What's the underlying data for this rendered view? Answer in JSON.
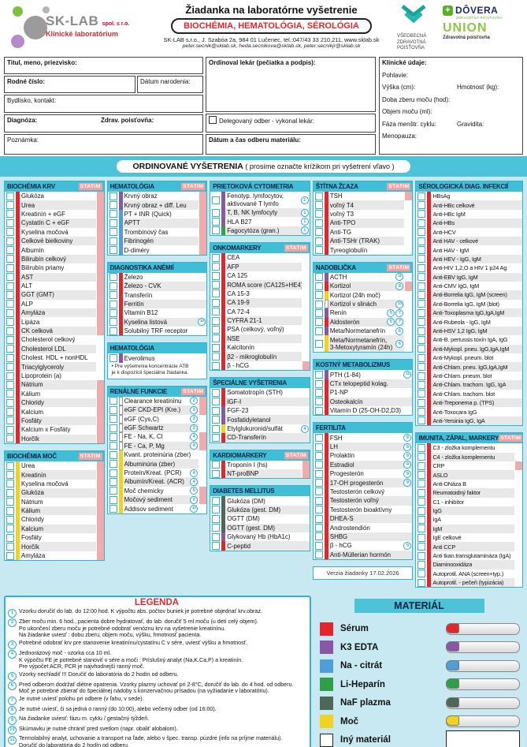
{
  "header": {
    "title": "Žiadanka na laboratórne vyšetrenie",
    "subtitle": "BIOCHÉMIA, HEMATOLÓGIA, SÉROLÓGIA",
    "address": "SK-LAB s.r.o., J. Szabóa 2a, 984 01 Lučenec, tel.:047/43 33 210,211, www.sklab.sk",
    "emails": "peter.secnik@sklab.sk, heda.secnikova@sklab.sk, peter.secnikjr@sklab.sk",
    "logo_name": "SK-LAB",
    "logo_suffix": "spol. s r.o.",
    "logo_sub": "Klinické laboratórium",
    "vszp_lines": "VŠEOBECNÁ\nZDRAVOTNÁ\nPOISŤOVŇA",
    "dovera_name": "DÔVERA",
    "dovera_sub": "ZDRAVOTNÁ POISŤOVŇA",
    "union_name": "UNION",
    "union_sub": "Zdravotná poisťovňa"
  },
  "patient": {
    "name_label": "Titul, meno, priezvisko:",
    "personal_id_label": "Rodné číslo:",
    "birthdate_label": "Dátum narodenia:",
    "address_label": "Bydlisko, kontakt:",
    "diagnosis_label": "Diagnóza:",
    "insurer_label": "Zdrav. poisťovňa:",
    "note_label": "Poznámka:",
    "doctor_label": "Ordinoval lekár (pečiatka a podpis):",
    "delegated_label": "Delegovaný odber - vykonal lekár:",
    "datetime_label": "Dátum a čas odberu materiálu:"
  },
  "clinical": {
    "title": "Klinické údaje:",
    "sex": "Pohlavie:",
    "height": "Výška (cm):",
    "weight": "Hmotnosť (kg):",
    "urine_time": "Doba zberu moču (hod):",
    "urine_volume": "Objem moču (ml):",
    "cycle": "Fáza menštr. cyklu:",
    "gravidity": "Gravidita:",
    "menopause": "Menopauza:"
  },
  "banner": {
    "title": "ORDINOVANÉ VYŠETRENIA",
    "note": "( prosíme označte krížikom pri vyšetrení vľavo )"
  },
  "statim_label": "STATIM",
  "material_colors": {
    "serum": "#e3262c",
    "edta": "#8a57a5",
    "citrat": "#4f9ed9",
    "hep": "#2f9e48",
    "naf": "#4f6757",
    "moc": "#f0d321",
    "none": "#ffffff"
  },
  "columns": [
    {
      "sections": [
        {
          "t": "BIOCHÉMIA KRV",
          "statim": true,
          "m": "serum",
          "sdef": 1,
          "rows": [
            "Glukóza",
            "Urea",
            "Kreatinín + eGF",
            "Cystatín C + eGF",
            "Kyselina močová",
            "Celkové bielkoviny",
            "Albumín",
            "Bilirubín celkový",
            "Bilirubín priamy",
            "AST",
            "ALT",
            "GGT (GMT)",
            "ALP",
            "Amyláza",
            "Lipáza",
            "CK celková",
            {
              "l": "Cholesterol celkový",
              "s": 0
            },
            {
              "l": "Cholesterol LDL",
              "s": 0
            },
            {
              "l": "Cholest. HDL + nonHDL",
              "s": 0
            },
            {
              "l": "Triacylglyceroly",
              "s": 0
            },
            {
              "l": "Lipoprotein (a)",
              "s": 0
            },
            "Nátrium",
            "Kálium",
            "Chloridy",
            "Kalcium",
            "Fosfáty",
            "Kalcium x Fosfáty",
            "Horčík"
          ]
        },
        {
          "t": "BIOCHÉMIA MOČ",
          "statim": true,
          "m": "moc",
          "sdef": 1,
          "rows": [
            "Urea",
            "Kreatinín",
            "Kyselina močová",
            "Glukóza",
            "Nátrium",
            "Kálium",
            "Chloridy",
            "Kalcium",
            "Fosfáty",
            "Horčík",
            "Amyláza"
          ]
        }
      ]
    },
    {
      "sections": [
        {
          "t": "HEMATOLÓGIA",
          "statim": true,
          "m": "citrat",
          "sdef": 1,
          "rows": [
            {
              "l": "Krvný obraz",
              "m": "edta"
            },
            {
              "l": "Krvný obraz + diff. Leu",
              "m": "edta"
            },
            "PT + INR (Quick)",
            "APTT",
            "Trombínový čas",
            "Fibrinogén",
            "D-diméry"
          ]
        },
        {
          "t": "DIAGNOSTIKA ANÉMIÍ",
          "statim": false,
          "m": "serum",
          "sdef": 0,
          "rows": [
            "Železo",
            "Železo - CVK",
            "Transferín",
            "Ferritín",
            "Vitamín B12",
            {
              "l": "Kyselina listová",
              "n": [
                "10"
              ]
            },
            "Solubilný TRF receptor"
          ]
        },
        {
          "t": "HEMATOLÓGIA",
          "statim": false,
          "m": "edta",
          "sdef": 0,
          "rows": [
            "Everolimus"
          ],
          "note": "• Pre vyšetrenia koncentrácie ATB\n  je k dispozícii špeciálna žiadanka."
        },
        {
          "t": "RENÁLNE FUNKCIE",
          "statim": true,
          "m": "none",
          "sdef": 0,
          "rows": [
            {
              "l": "Clearance kreatinínu",
              "n": [
                "2"
              ],
              "s": 1
            },
            {
              "l": "eGF CKD-EPI (Kre.)",
              "n": [
                "3"
              ],
              "s": 1
            },
            {
              "l": "eGF (Cys,C)",
              "n": [
                "3"
              ]
            },
            {
              "l": "eGF Schwartz",
              "n": [
                "3"
              ]
            },
            {
              "l": "FE - Na, K, Cl",
              "n": [
                "4"
              ],
              "s": 1
            },
            {
              "l": "FE - Ca, P, Mg",
              "n": [
                "4"
              ],
              "s": 1
            },
            {
              "l": "Kvant. proteinúria (zber)",
              "m": "moc"
            },
            {
              "l": "Albuminúria (zber)",
              "m": "moc"
            },
            {
              "l": "Proteín/Kreat. (PCR)",
              "m": "moc",
              "n": [
                "4"
              ]
            },
            {
              "l": "Albumín/Kreat. (ACR)",
              "m": "moc",
              "n": [
                "4"
              ]
            },
            {
              "l": "Moč chemicky",
              "m": "moc",
              "n": [
                "5"
              ],
              "s": 1
            },
            {
              "l": "Močový sediment",
              "m": "moc",
              "n": [
                "5"
              ],
              "s": 1
            },
            {
              "l": "Addisov sediment",
              "m": "moc",
              "n": [
                "12"
              ]
            }
          ]
        }
      ]
    },
    {
      "sections": [
        {
          "t": "PRIETOKOVÁ CYTOMETRIA",
          "statim": false,
          "m": "edta",
          "sdef": 0,
          "rows": [
            {
              "l": "Fenotyp. lymfocytov,",
              "l2": "aktivované T lymfo",
              "n": [
                "1"
              ]
            },
            {
              "l": "T, B, NK lymfocyty",
              "n": [
                "1"
              ]
            },
            {
              "l": "HLA B27",
              "n": [
                "1"
              ]
            },
            {
              "l": "Fagocytóza (gran.)",
              "m": "hep",
              "n": [
                "1"
              ]
            }
          ]
        },
        {
          "t": "ONKOMARKERY",
          "statim": true,
          "m": "serum",
          "sdef": 0,
          "rows": [
            "CEA",
            "AFP",
            "CA 125",
            "ROMA score (CA125+HE4)",
            "CA 15-3",
            "CA 19-9",
            "CA 72-4",
            "CYFRA 21-1",
            "PSA (celkový, voľný)",
            "NSE",
            "Kalcitonín",
            "β2 - mikroglobulín",
            {
              "l": "β - hCG",
              "s": 1
            }
          ]
        },
        {
          "t": "ŠPECIÁLNE VYŠETRENIA",
          "statim": false,
          "m": "serum",
          "sdef": 0,
          "rows": [
            "Somatotropín (STH)",
            "IGF-I",
            {
              "l": "FGF-23",
              "m": "edta"
            },
            {
              "l": "Fosfatidyletanol",
              "m": "edta"
            },
            {
              "l": "Etylglukuronid/sulfát",
              "m": "moc",
              "n": [
                "4"
              ]
            },
            "CD-Transferín"
          ]
        },
        {
          "t": "KARDIOMARKERY",
          "statim": true,
          "m": "serum",
          "sdef": 1,
          "rows": [
            "Troponín I (hs)",
            "NT-proBNP"
          ]
        },
        {
          "t": "DIABETES MELLITUS",
          "statim": false,
          "m": "naf",
          "sdef": 0,
          "rows": [
            "Glukóza (DM)",
            "Glukóza (gest. DM)",
            "OGTT (DM)",
            "OGTT (gest. DM)",
            {
              "l": "Glykovaný Hb (HbA1c)",
              "m": "edta"
            },
            {
              "l": "C-peptid",
              "m": "serum"
            }
          ]
        }
      ]
    },
    {
      "version": "Verzia žiadanky 17.02.2026",
      "sections": [
        {
          "t": "ŠTÍTNA ŽĽAZA",
          "statim": true,
          "m": "serum",
          "sdef": 0,
          "rows": [
            {
              "l": "TSH",
              "s": 1
            },
            "voľný T4",
            "voľný T3",
            "Anti-TPO",
            "Anti-TG",
            "Anti-TSHr (TRAK)",
            "Tyreoglobulín"
          ]
        },
        {
          "t": "NADOBLIČKA",
          "statim": true,
          "m": "serum",
          "sdef": 0,
          "rows": [
            {
              "l": "ACTH",
              "m": "edta",
              "n": [
                "11"
              ]
            },
            {
              "l": "Kortizol",
              "n": [
                "8"
              ],
              "s": 1
            },
            {
              "l": "Kortizol (24h moč)",
              "m": "moc"
            },
            {
              "l": "Kortizol v slinách",
              "m": "none",
              "n": [
                "13"
              ]
            },
            {
              "l": "Renín",
              "m": "edta",
              "n": [
                "5",
                "7"
              ]
            },
            {
              "l": "Aldosterón",
              "n": [
                "5",
                "7"
              ]
            },
            {
              "l": "Meta/Normetanefrín",
              "m": "edta",
              "n": [
                "6"
              ]
            },
            {
              "l": "Meta/Normetanefrín,",
              "l2": "3-Metoxytyramín (24h)",
              "m": "moc",
              "n": [
                "6"
              ]
            }
          ]
        },
        {
          "t": "KOSTNÝ METABOLIZMUS",
          "statim": false,
          "m": "serum",
          "sdef": 0,
          "rows": [
            {
              "l": "PTH (1-84)",
              "m": "edta",
              "n": [
                "11"
              ]
            },
            "CTx telopeptid kolag.",
            "P1-NP",
            "Osteokalcín",
            "Vitamín D (25-OH-D2,D3)"
          ]
        },
        {
          "t": "FERTILITA",
          "statim": false,
          "m": "serum",
          "sdef": 0,
          "rows": [
            {
              "l": "FSH",
              "n": [
                "9"
              ]
            },
            {
              "l": "LH",
              "n": [
                "9"
              ]
            },
            {
              "l": "Prolaktín",
              "n": [
                "9"
              ]
            },
            {
              "l": "Estradiol",
              "n": [
                "9"
              ]
            },
            {
              "l": "Progesterón",
              "n": [
                "9"
              ]
            },
            {
              "l": "17-OH progesterón",
              "n": [
                "9"
              ]
            },
            "Testosterón celkový",
            "Testosterón voľný",
            "Testosterón bioaktívny",
            "DHEA-S",
            "Androstendión",
            "SHBG",
            {
              "l": "β - hCG",
              "n": [
                "9"
              ]
            },
            "Anti-Müllerian hormón"
          ]
        }
      ]
    },
    {
      "narrow": true,
      "sections": [
        {
          "t": "SÉROLOGICKÁ DIAG. INFEKCIÍ",
          "statim": false,
          "m": "serum",
          "sdef": 0,
          "rows": [
            "HBsAg",
            "Anti-HBc celkové",
            "Anti-HBc IgM",
            "Anti-HBs",
            "Anti-HCV",
            "Anti HAV - celkové",
            "Anti HAV - IgM",
            "Anti HEV - IgG, IgM",
            "Anti-HIV 1,2,O a HIV 1 p24 Ag",
            "Anti-EBV IgG, IgM",
            "Anti-CMV IgG, IgM",
            "Anti-Borrelia IgG, IgM (screen)",
            "Anti-Borrelia IgG, IgM (blot)",
            "Anti-Toxoplasma IgG,IgA,IgM",
            "Anti-Rubeola - IgG, IgM",
            "Anti-HSV 1,2 IgG, IgM",
            "Anti-B. pertussis toxín IgA, IgG",
            "Anti-Mykopl. pneu. IgG,IgA,IgM",
            "Anti-Mykopl. pneum. blot",
            "Anti-Chlam. pneu. IgG,IgA,IgM",
            "Anti-Chlam. pneum. blot",
            "Anti-Chlam. trachom. IgG, IgA",
            "Anti-Chlam. trachom. blot",
            "Anti-Treponema p. (TPS)",
            "Anti-Toxocara IgG",
            "Anti-Yersinia IgG, IgA"
          ]
        },
        {
          "t": "IMUNITA, ZÁPAL, MARKERY",
          "statim": true,
          "m": "serum",
          "sdef": 0,
          "rows": [
            "C3 - zložka komplementu",
            "C4 - zložka komplementu",
            {
              "l": "CRP",
              "s": 1
            },
            "ASLO",
            "Anti-DNáza B",
            "Reumatoidný faktor",
            "C1 - inhibítor",
            "IgG",
            "IgA",
            "IgM",
            "IgE celkové",
            "Anti CCP",
            "Anti tkan.transglutamináza (IgA)",
            "Diaminooxidáza",
            "Autoprotil. ANA (screen+typ.)",
            "Autoprotil. - pečeň (typizácia)"
          ]
        }
      ]
    }
  ],
  "legend": {
    "title": "LEGENDA",
    "items": [
      {
        "num": "1",
        "text": "Vzorku doručiť do lab. do 12:00 hod. K výpočtu abs. počtov buniek je potrebné objednať krv.obraz."
      },
      {
        "num": "2",
        "text": "Zber moču min. 6 hod., pacienta dobre hydratovať, do lab. doručiť 5 ml moču (u detí celý objem).\nPo ukončení zberu moču je potrebné odobrať venóznu krv na vyšetrenie kreatinínu.\nNa žiadanke uviesť : dobu zberu, objem moču, výšku, hmotnosť pacienta."
      },
      {
        "num": "3",
        "text": "Potrebné odobrať krv pre stanovenie kreatinínu/cystatínu C v sére, uviesť výšku a hmotnosť."
      },
      {
        "num": "4",
        "text": "Jednorázový moč - vzorka cca 10 ml.\nK výpočtu FE je potrebné stanoviť v sére a moči : Príslušný analyt (Na,K,Ca,P) a kreatinín.\nPre výpočet ACR, PCR je najvhodnejší ranný moč."
      },
      {
        "num": "5",
        "text": "Vzorky nechladiť !!! Doručiť do laboratória do 2 hodín od odberu."
      },
      {
        "num": "6",
        "text": "Pred odberom dodržať diétne opatrenia. Vzorky plazmy uchovať pri 2-8°C, doručiť do lab. do 4 hod. od odberu.\nMoč je potrebné zbierať do špeciálnej nádoby s konzervačnou prísadou (na vyžiadanie v laboratóriu)."
      },
      {
        "num": "7",
        "text": "Je nutné uviesť polohu pri odbere (v ľahu, v sede)."
      },
      {
        "num": "8",
        "text": "Je nutné uviesť, či sa jedná o ranný (do 10:00), alebo večerný odber (od 16:00)."
      },
      {
        "num": "9",
        "text": "Na žiadanke uviesť: fázu m. cyklu / gestačný týždeň."
      },
      {
        "num": "10",
        "text": "Skúmavku je nutné chrániť pred svetlom (napr. obaliť alobalom)."
      },
      {
        "num": "11",
        "text": "Termolabilný analyt, uchovanie a transport na ľade, alebo v špec. transp. púzdre (info na príjme materiálu).\nDoručiť do laboratória do 2 hodín od odberu."
      },
      {
        "num": "12",
        "text": "Zber moču 12 hod., pacienta hydratovať, do lab. doručiť 10 ml moču. Uviesť dobu zberu a objem moču."
      },
      {
        "num": "13",
        "text": "Sliny je potrebné odobrať o 23:00 hod. (late-night salivary cortisol)"
      }
    ]
  },
  "material": {
    "title": "MATERIÁL",
    "items": [
      {
        "label": "Sérum",
        "key": "serum"
      },
      {
        "label": "K3 EDTA",
        "key": "edta"
      },
      {
        "label": "Na - citrát",
        "key": "citrat"
      },
      {
        "label": "Li-Heparín",
        "key": "hep"
      },
      {
        "label": "NaF plazma",
        "key": "naf"
      },
      {
        "label": "Moč",
        "key": "moc"
      },
      {
        "label": "Iný materiál",
        "key": "none",
        "box": true
      }
    ]
  }
}
